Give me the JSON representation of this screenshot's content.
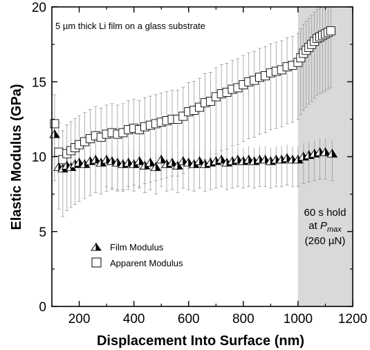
{
  "chart_data": {
    "type": "scatter",
    "xlabel": "Displacement Into Surface (nm)",
    "ylabel": "Elastic Modulus (GPa)",
    "xlim": [
      100,
      1200
    ],
    "ylim": [
      0,
      20
    ],
    "x_ticks": [
      "200",
      "400",
      "600",
      "800",
      "1000",
      "1200"
    ],
    "y_ticks": [
      "0",
      "5",
      "10",
      "15",
      "20"
    ],
    "annotation": "5 µm thick Li film on a glass substrate",
    "shaded_region": {
      "x_range": [
        1000,
        1200
      ],
      "label_line1": "60 s hold",
      "label_line2_prefix": "at ",
      "label_line2_var": "P",
      "label_line2_sub": "max",
      "label_line3": "(260 µN)",
      "color": "#d9d9d9"
    },
    "legend_position": "lower-left",
    "series": [
      {
        "name": "Film Modulus",
        "marker": "half-filled-triangle",
        "x": [
          110,
          125,
          140,
          155,
          170,
          185,
          200,
          220,
          240,
          260,
          280,
          300,
          320,
          340,
          360,
          380,
          400,
          420,
          440,
          460,
          480,
          500,
          520,
          540,
          560,
          580,
          600,
          620,
          640,
          660,
          680,
          700,
          720,
          740,
          760,
          780,
          800,
          820,
          840,
          860,
          880,
          900,
          920,
          940,
          960,
          980,
          1000,
          1020,
          1040,
          1060,
          1080,
          1100,
          1125
        ],
        "y": [
          11.5,
          9.3,
          9.2,
          9.4,
          9.3,
          9.5,
          9.6,
          9.5,
          9.7,
          9.8,
          9.6,
          9.8,
          9.7,
          9.6,
          9.5,
          9.6,
          9.5,
          9.7,
          9.4,
          9.6,
          9.3,
          9.8,
          9.5,
          9.6,
          9.4,
          9.7,
          9.6,
          9.5,
          9.7,
          9.5,
          9.6,
          9.7,
          9.8,
          9.6,
          9.7,
          9.8,
          9.7,
          9.8,
          9.7,
          9.8,
          9.8,
          9.7,
          9.8,
          9.8,
          9.9,
          9.8,
          9.8,
          10.0,
          10.1,
          10.2,
          10.3,
          10.3,
          10.2
        ],
        "error": 1.8,
        "error_start_x": 300
      },
      {
        "name": "Apparent Modulus",
        "marker": "open-square",
        "x": [
          110,
          125,
          140,
          155,
          170,
          185,
          200,
          220,
          240,
          260,
          280,
          300,
          320,
          340,
          360,
          380,
          400,
          420,
          440,
          460,
          480,
          500,
          520,
          540,
          560,
          580,
          600,
          620,
          640,
          660,
          680,
          700,
          720,
          740,
          760,
          780,
          800,
          820,
          840,
          860,
          880,
          900,
          920,
          940,
          960,
          980,
          1000,
          1010,
          1020,
          1030,
          1040,
          1050,
          1060,
          1070,
          1080,
          1090,
          1100,
          1110,
          1120
        ],
        "y": [
          12.2,
          10.3,
          9.8,
          10.2,
          10.4,
          10.6,
          10.8,
          11.0,
          11.2,
          11.4,
          11.3,
          11.5,
          11.6,
          11.5,
          11.6,
          11.8,
          11.9,
          11.8,
          12.0,
          12.1,
          12.2,
          12.3,
          12.4,
          12.5,
          12.5,
          12.7,
          13.0,
          13.1,
          13.3,
          13.6,
          13.7,
          14.0,
          14.2,
          14.3,
          14.5,
          14.6,
          14.8,
          15.0,
          15.1,
          15.3,
          15.4,
          15.6,
          15.7,
          15.8,
          16.0,
          16.1,
          16.3,
          16.6,
          16.9,
          17.1,
          17.3,
          17.5,
          17.7,
          17.9,
          18.0,
          18.1,
          18.2,
          18.3,
          18.4
        ],
        "error_lower": 3.8,
        "error_upper_frac": 0.3
      }
    ]
  }
}
